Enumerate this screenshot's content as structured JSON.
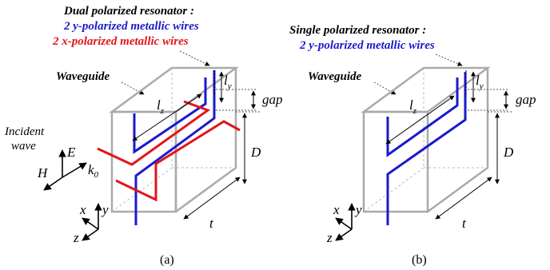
{
  "panel_a": {
    "title_line1": "Dual polarized resonator :",
    "title_line2": "2 y-polarized metallic wires",
    "title_line3": "2 x-polarized metallic wires",
    "waveguide_label": "Waveguide",
    "incident_wave_line1": "Incident",
    "incident_wave_line2": "wave",
    "E": "E",
    "H": "H",
    "k0": "k",
    "k0_sub": "0",
    "lz": "l",
    "lz_sub": "z",
    "ly": "l",
    "ly_sub": "y",
    "gap": "gap",
    "D": "D",
    "t": "t",
    "x": "x",
    "y": "y",
    "z": "z",
    "caption": "(a)"
  },
  "panel_b": {
    "title_line1": "Single polarized resonator :",
    "title_line2": "2 y-polarized metallic wires",
    "waveguide_label": "Waveguide",
    "lz": "l",
    "lz_sub": "z",
    "ly": "l",
    "ly_sub": "y",
    "gap": "gap",
    "D": "D",
    "t": "t",
    "x": "x",
    "y": "y",
    "z": "z",
    "caption": "(b)"
  },
  "colors": {
    "y_wire": "#1a1acc",
    "x_wire": "#e0161b",
    "waveguide": "#aaaaaa",
    "text": "#000000"
  }
}
